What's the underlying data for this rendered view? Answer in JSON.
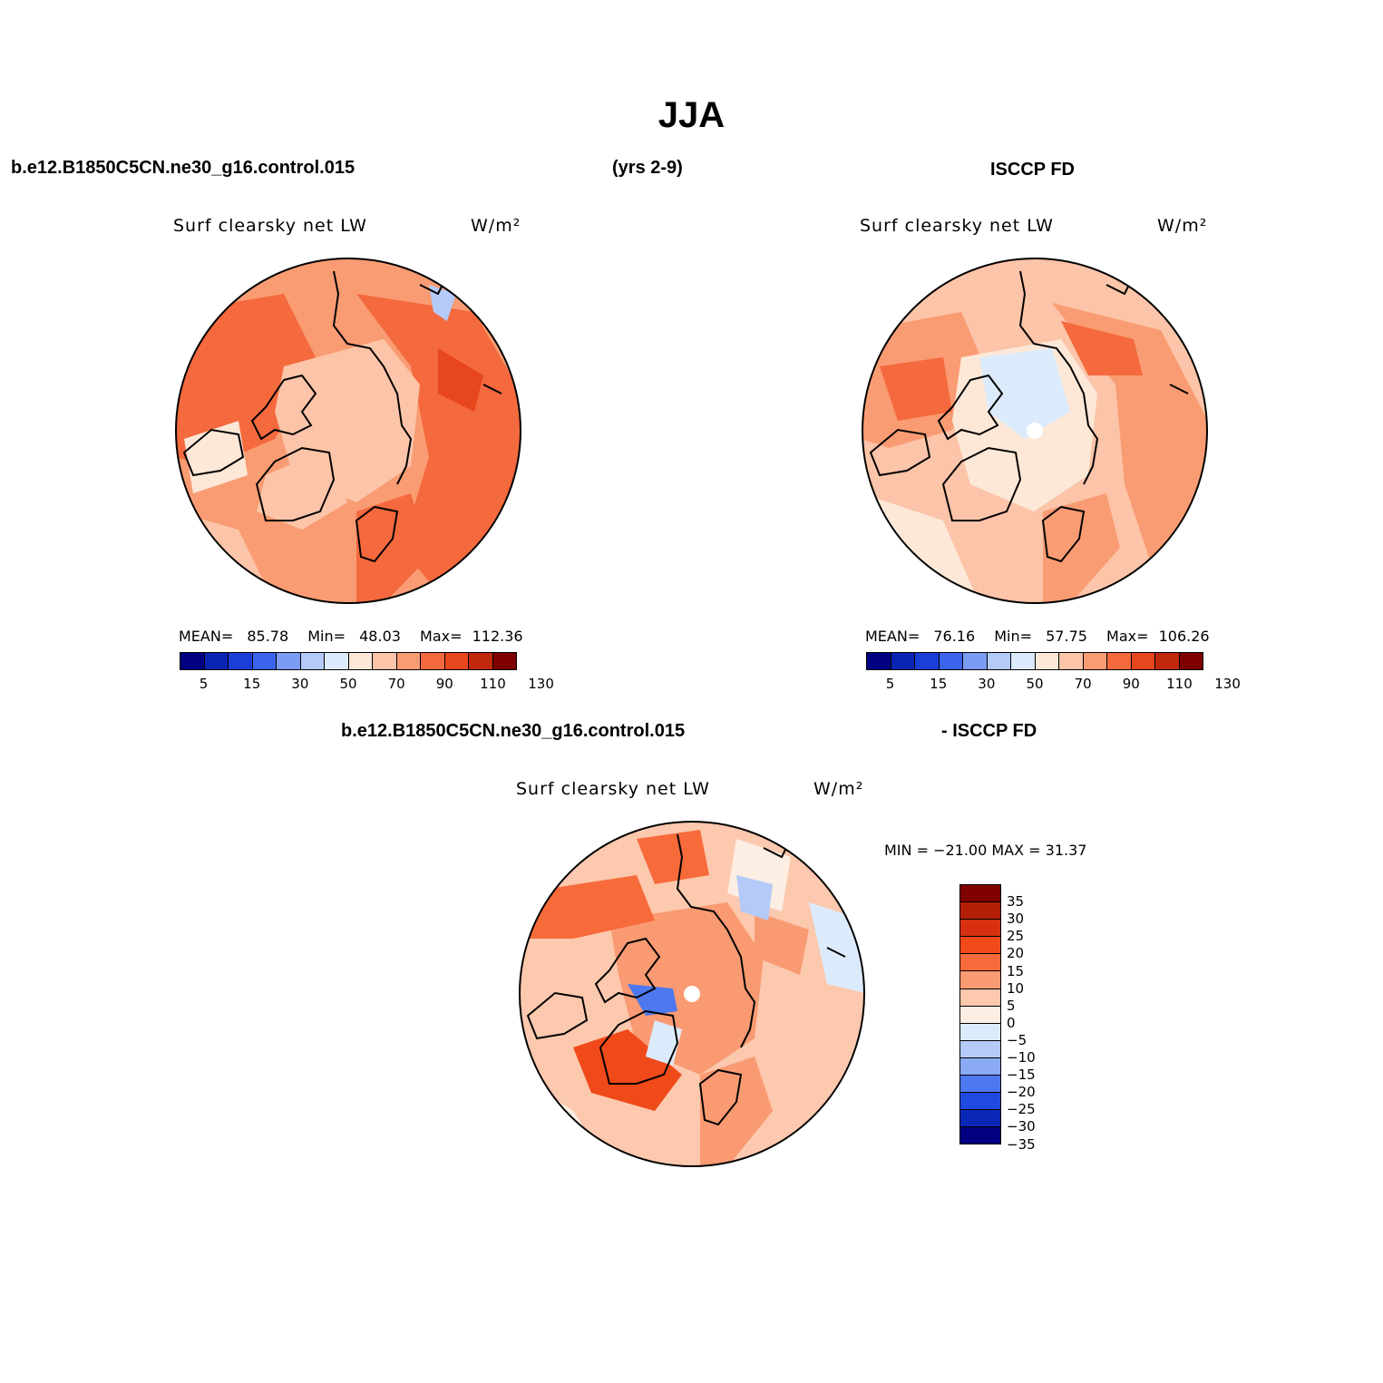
{
  "figure": {
    "title": "JJA",
    "case_name": "b.e12.B1850C5CN.ne30_g16.control.015",
    "years": "(yrs 2-9)",
    "obs_name": "ISCCP FD",
    "diff_case_name": "b.e12.B1850C5CN.ne30_g16.control.015",
    "diff_obs_name": "- ISCCP FD"
  },
  "panels": {
    "model": {
      "variable": "Surf clearsky net LW",
      "units": "W/m²",
      "mean_label": "MEAN=",
      "mean_value": "85.78",
      "min_label": "Min=",
      "min_value": "48.03",
      "max_label": "Max=",
      "max_value": "112.36"
    },
    "obs": {
      "variable": "Surf clearsky net LW",
      "units": "W/m²",
      "mean_label": "MEAN=",
      "mean_value": "76.16",
      "min_label": "Min=",
      "min_value": "57.75",
      "max_label": "Max=",
      "max_value": "106.26"
    },
    "diff": {
      "variable": "Surf clearsky net LW",
      "units": "W/m²",
      "minmax_text": "MIN = −21.00 MAX =  31.37"
    }
  },
  "colorbars": {
    "abs": {
      "colors": [
        "#000080",
        "#0a24b4",
        "#1a3fd8",
        "#3b63ec",
        "#7b9cf2",
        "#b4caf8",
        "#dcebfb",
        "#fde8d8",
        "#fcc4a8",
        "#f99c73",
        "#f4693d",
        "#e8461c",
        "#c2290c",
        "#7f0000"
      ],
      "tick_labels": [
        "5",
        "15",
        "30",
        "50",
        "70",
        "90",
        "110",
        "130"
      ]
    },
    "diff": {
      "colors": [
        "#800000",
        "#b21f05",
        "#d63010",
        "#f04a1a",
        "#f76a3a",
        "#f99a72",
        "#fcc8ae",
        "#fdeee3",
        "#dcebfb",
        "#b4caf8",
        "#8aaaf4",
        "#4d78f0",
        "#1f4ae0",
        "#0a28b8",
        "#000080"
      ],
      "tick_labels": [
        "35",
        "30",
        "25",
        "20",
        "15",
        "10",
        "5",
        "0",
        "−5",
        "−10",
        "−15",
        "−20",
        "−25",
        "−30",
        "−35"
      ]
    }
  },
  "map_data": {
    "projection": "north-polar-stereographic",
    "region": "Northern Hemisphere high latitudes",
    "panels": [
      "model",
      "obs",
      "diff"
    ]
  }
}
